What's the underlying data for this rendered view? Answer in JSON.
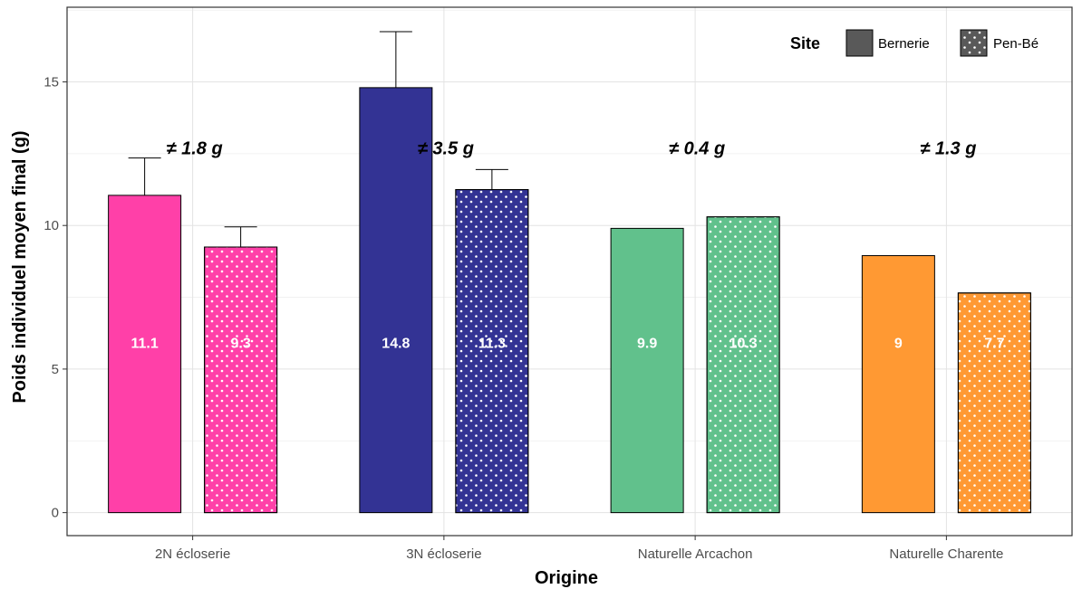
{
  "chart_data": {
    "type": "bar",
    "title": "",
    "xlabel": "Origine",
    "ylabel": "Poids individuel moyen final (g)",
    "ylim": [
      -0.8,
      17.6
    ],
    "yticks": [
      0,
      5,
      10,
      15
    ],
    "yticks_labels": [
      "0",
      "5",
      "10",
      "15"
    ],
    "grid": true,
    "legend": {
      "title": "Site",
      "position": "top-right",
      "entries": [
        {
          "name": "Bernerie",
          "pattern": "solid"
        },
        {
          "name": "Pen-Bé",
          "pattern": "dots"
        }
      ]
    },
    "categories": [
      "2N écloserie",
      "3N écloserie",
      "Naturelle Arcachon",
      "Naturelle Charente"
    ],
    "colors": [
      "#ff40a8",
      "#333394",
      "#61c18c",
      "#ff9933"
    ],
    "series": [
      {
        "name": "Bernerie",
        "values": [
          11.05,
          14.8,
          9.9,
          8.95
        ],
        "labels": [
          "11.1",
          "14.8",
          "9.9",
          "9"
        ],
        "error_upper": [
          12.35,
          16.75,
          null,
          null
        ]
      },
      {
        "name": "Pen-Bé",
        "values": [
          9.25,
          11.25,
          10.3,
          7.65
        ],
        "labels": [
          "9.3",
          "11.3",
          "10.3",
          "7.7"
        ],
        "error_upper": [
          9.95,
          11.95,
          null,
          null
        ]
      }
    ],
    "annotations": [
      "≠ 1.8 g",
      "≠ 3.5 g",
      "≠ 0.4 g",
      "≠ 1.3 g"
    ],
    "annotation_y": 12.7
  }
}
